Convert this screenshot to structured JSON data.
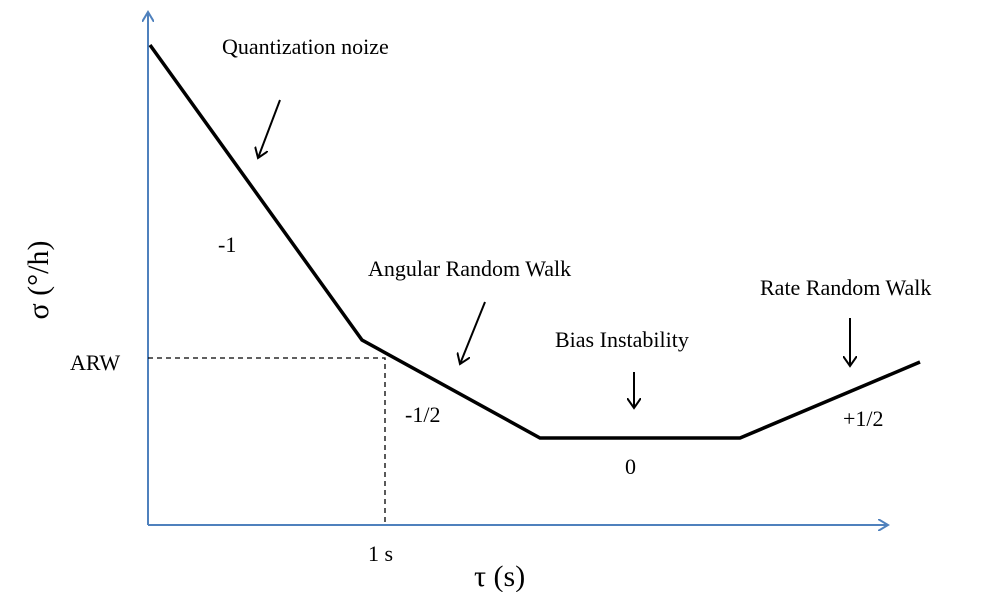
{
  "axes": {
    "x_label": "τ (s)",
    "y_label": "σ (°/h)"
  },
  "markers": {
    "arw": "ARW",
    "one_second": "1 s"
  },
  "regions": [
    {
      "name": "Quantization noize",
      "slope": "-1"
    },
    {
      "name": "Angular Random Walk",
      "slope": "-1/2"
    },
    {
      "name": "Bias Instability",
      "slope": "0"
    },
    {
      "name": "Rate Random Walk",
      "slope": "+1/2"
    }
  ]
}
